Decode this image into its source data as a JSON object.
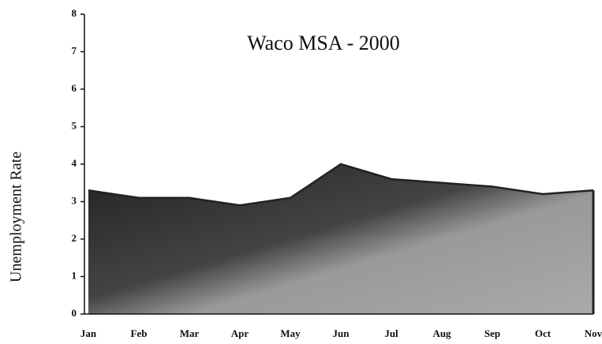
{
  "chart_data": {
    "type": "area",
    "title": "Waco MSA - 2000",
    "y_label": "Unemployment Rate",
    "categories": [
      "Jan",
      "Feb",
      "Mar",
      "Apr",
      "May",
      "Jun",
      "Jul",
      "Aug",
      "Sep",
      "Oct",
      "Nov"
    ],
    "values": [
      3.3,
      3.1,
      3.1,
      2.9,
      3.1,
      4.0,
      3.6,
      3.5,
      3.4,
      3.2,
      3.3
    ],
    "color": "#8a8a8a",
    "ylim": [
      0,
      8
    ],
    "yticks": [
      0,
      1,
      2,
      3,
      4,
      5,
      6,
      7,
      8
    ]
  }
}
